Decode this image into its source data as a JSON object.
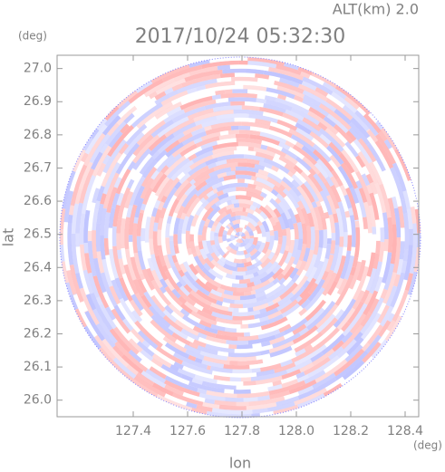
{
  "chart_data": {
    "type": "ppi",
    "title": "2017/10/24 05:32:30",
    "annotation": "ALT(km) 2.0",
    "y_unit": "(deg)",
    "x_unit": "(deg)",
    "xlabel": "lon",
    "ylabel": "lat",
    "xlim": [
      127.12,
      128.45
    ],
    "ylim": [
      25.95,
      27.04
    ],
    "xticks": [
      127.4,
      127.6,
      127.8,
      {
        "value": 128,
        "label": "128.0"
      },
      128.2,
      128.4
    ],
    "yticks": [
      {
        "value": 26,
        "label": "26.0"
      },
      26.1,
      26.2,
      26.3,
      26.4,
      26.5,
      26.6,
      26.7,
      26.8,
      26.9,
      {
        "value": 27,
        "label": "27.0"
      }
    ]
  }
}
